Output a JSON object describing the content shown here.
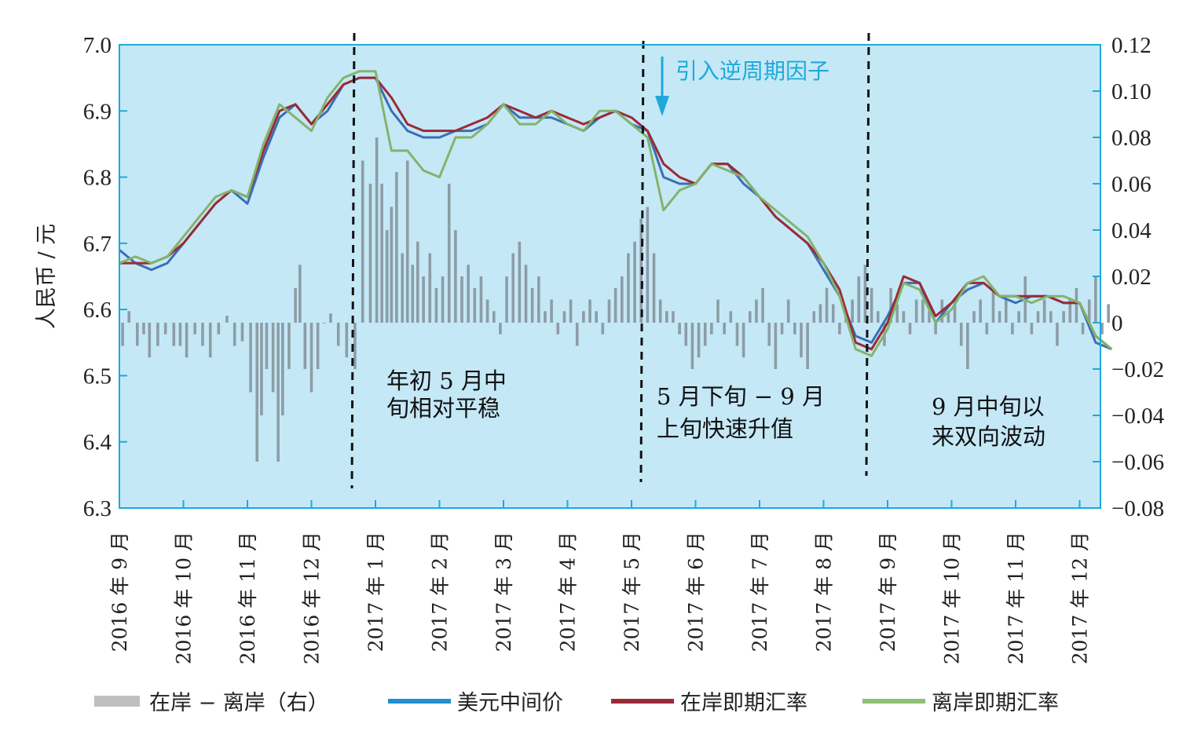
{
  "chart_data": {
    "type": "line",
    "ylabel": "人民币 / 元",
    "y_left": {
      "min": 6.3,
      "max": 7.0,
      "ticks": [
        "7.0",
        "6.9",
        "6.8",
        "6.7",
        "6.6",
        "6.5",
        "6.4",
        "6.3"
      ]
    },
    "y_right": {
      "min": -0.08,
      "max": 0.12,
      "ticks": [
        "0.12",
        "0.10",
        "0.08",
        "0.06",
        "0.04",
        "0.02",
        "0",
        "−0.02",
        "−0.04",
        "−0.06",
        "−0.08"
      ]
    },
    "x_ticks": [
      "2016 年 9 月",
      "2016 年 10 月",
      "2016 年 11 月",
      "2016 年 12 月",
      "2017 年 1 月",
      "2017 年 2 月",
      "2017 年 3 月",
      "2017 年 4 月",
      "2017 年 5 月",
      "2017 年 6 月",
      "2017 年 7 月",
      "2017 年 8 月",
      "2017 年 9 月",
      "2017 年 10 月",
      "2017 年 11 月",
      "2017 年 12 月"
    ],
    "grid": false,
    "colors": {
      "bg": "#c5e8f7",
      "axis": "#1fa9d8",
      "mid": "#3a6fb5",
      "onshore": "#9b2a37",
      "offshore": "#84b36a",
      "bars": "#8c9da6"
    },
    "annotations": [
      {
        "lines": [
          "年初 5 月中",
          "旬相对平稳"
        ]
      },
      {
        "lines": [
          "5 月下旬 − 9 月",
          "上旬快速升值"
        ]
      },
      {
        "lines": [
          "9 月中旬以",
          "来双向波动"
        ]
      }
    ],
    "arrow_note": "引入逆周期因子",
    "series": [
      {
        "name": "美元中间价",
        "axis": "left",
        "x": [
          0,
          0.25,
          0.5,
          0.75,
          1.0,
          1.25,
          1.5,
          1.75,
          2.0,
          2.25,
          2.5,
          2.75,
          3.0,
          3.25,
          3.5,
          3.75,
          4.0,
          4.25,
          4.5,
          4.75,
          5.0,
          5.25,
          5.5,
          5.75,
          6.0,
          6.25,
          6.5,
          6.75,
          7.0,
          7.25,
          7.5,
          7.75,
          8.0,
          8.25,
          8.5,
          8.75,
          9.0,
          9.25,
          9.5,
          9.75,
          10.0,
          10.25,
          10.5,
          10.75,
          11.0,
          11.25,
          11.5,
          11.75,
          12.0,
          12.25,
          12.5,
          12.75,
          13.0,
          13.25,
          13.5,
          13.75,
          14.0,
          14.25,
          14.5,
          14.75,
          15.0,
          15.25,
          15.5
        ],
        "values": [
          6.69,
          6.67,
          6.66,
          6.67,
          6.7,
          6.73,
          6.76,
          6.78,
          6.76,
          6.83,
          6.89,
          6.91,
          6.88,
          6.9,
          6.94,
          6.95,
          6.95,
          6.9,
          6.87,
          6.86,
          6.86,
          6.87,
          6.87,
          6.88,
          6.91,
          6.89,
          6.89,
          6.89,
          6.88,
          6.87,
          6.89,
          6.9,
          6.88,
          6.87,
          6.8,
          6.79,
          6.79,
          6.82,
          6.82,
          6.79,
          6.77,
          6.74,
          6.72,
          6.7,
          6.66,
          6.62,
          6.56,
          6.55,
          6.59,
          6.64,
          6.64,
          6.58,
          6.61,
          6.63,
          6.64,
          6.62,
          6.61,
          6.62,
          6.62,
          6.61,
          6.61,
          6.55,
          6.54
        ]
      },
      {
        "name": "在岸即期汇率",
        "axis": "left",
        "x": [
          0,
          0.25,
          0.5,
          0.75,
          1.0,
          1.25,
          1.5,
          1.75,
          2.0,
          2.25,
          2.5,
          2.75,
          3.0,
          3.25,
          3.5,
          3.75,
          4.0,
          4.25,
          4.5,
          4.75,
          5.0,
          5.25,
          5.5,
          5.75,
          6.0,
          6.25,
          6.5,
          6.75,
          7.0,
          7.25,
          7.5,
          7.75,
          8.0,
          8.25,
          8.5,
          8.75,
          9.0,
          9.25,
          9.5,
          9.75,
          10.0,
          10.25,
          10.5,
          10.75,
          11.0,
          11.25,
          11.5,
          11.75,
          12.0,
          12.25,
          12.5,
          12.75,
          13.0,
          13.25,
          13.5,
          13.75,
          14.0,
          14.25,
          14.5,
          14.75,
          15.0,
          15.25,
          15.5
        ],
        "values": [
          6.67,
          6.67,
          6.67,
          6.68,
          6.7,
          6.73,
          6.76,
          6.78,
          6.77,
          6.84,
          6.9,
          6.91,
          6.88,
          6.91,
          6.94,
          6.95,
          6.95,
          6.92,
          6.88,
          6.87,
          6.87,
          6.87,
          6.88,
          6.89,
          6.91,
          6.9,
          6.89,
          6.9,
          6.89,
          6.88,
          6.89,
          6.9,
          6.89,
          6.87,
          6.82,
          6.8,
          6.79,
          6.82,
          6.82,
          6.8,
          6.77,
          6.74,
          6.72,
          6.7,
          6.67,
          6.63,
          6.55,
          6.54,
          6.58,
          6.65,
          6.64,
          6.59,
          6.61,
          6.64,
          6.64,
          6.62,
          6.62,
          6.62,
          6.62,
          6.61,
          6.61,
          6.56,
          6.54
        ]
      },
      {
        "name": "离岸即期汇率",
        "axis": "left",
        "x": [
          0,
          0.25,
          0.5,
          0.75,
          1.0,
          1.25,
          1.5,
          1.75,
          2.0,
          2.25,
          2.5,
          2.75,
          3.0,
          3.25,
          3.5,
          3.75,
          4.0,
          4.25,
          4.5,
          4.75,
          5.0,
          5.25,
          5.5,
          5.75,
          6.0,
          6.25,
          6.5,
          6.75,
          7.0,
          7.25,
          7.5,
          7.75,
          8.0,
          8.25,
          8.5,
          8.75,
          9.0,
          9.25,
          9.5,
          9.75,
          10.0,
          10.25,
          10.5,
          10.75,
          11.0,
          11.25,
          11.5,
          11.75,
          12.0,
          12.25,
          12.5,
          12.75,
          13.0,
          13.25,
          13.5,
          13.75,
          14.0,
          14.25,
          14.5,
          14.75,
          15.0,
          15.25,
          15.5
        ],
        "values": [
          6.67,
          6.68,
          6.67,
          6.68,
          6.71,
          6.74,
          6.77,
          6.78,
          6.77,
          6.85,
          6.91,
          6.89,
          6.87,
          6.92,
          6.95,
          6.96,
          6.96,
          6.84,
          6.84,
          6.81,
          6.8,
          6.86,
          6.86,
          6.88,
          6.91,
          6.88,
          6.88,
          6.9,
          6.88,
          6.87,
          6.9,
          6.9,
          6.88,
          6.86,
          6.75,
          6.78,
          6.79,
          6.82,
          6.81,
          6.8,
          6.77,
          6.75,
          6.73,
          6.71,
          6.67,
          6.62,
          6.54,
          6.53,
          6.57,
          6.64,
          6.63,
          6.58,
          6.6,
          6.64,
          6.65,
          6.62,
          6.62,
          6.61,
          6.62,
          6.62,
          6.61,
          6.56,
          6.54
        ]
      },
      {
        "name": "在岸 − 离岸（右）",
        "axis": "right",
        "type": "bar",
        "x": [
          0.05,
          0.15,
          0.28,
          0.38,
          0.47,
          0.6,
          0.72,
          0.85,
          0.95,
          1.05,
          1.18,
          1.3,
          1.42,
          1.55,
          1.68,
          1.8,
          1.92,
          2.05,
          2.15,
          2.22,
          2.3,
          2.4,
          2.48,
          2.55,
          2.65,
          2.75,
          2.82,
          2.9,
          3.0,
          3.1,
          3.2,
          3.3,
          3.42,
          3.55,
          3.68,
          3.8,
          3.92,
          4.02,
          4.1,
          4.18,
          4.25,
          4.33,
          4.42,
          4.5,
          4.58,
          4.66,
          4.75,
          4.85,
          4.95,
          5.05,
          5.15,
          5.25,
          5.35,
          5.45,
          5.55,
          5.65,
          5.75,
          5.85,
          5.95,
          6.05,
          6.15,
          6.25,
          6.35,
          6.45,
          6.55,
          6.65,
          6.75,
          6.85,
          6.95,
          7.05,
          7.15,
          7.25,
          7.35,
          7.45,
          7.55,
          7.65,
          7.75,
          7.85,
          7.95,
          8.05,
          8.15,
          8.25,
          8.35,
          8.45,
          8.55,
          8.65,
          8.75,
          8.85,
          8.95,
          9.05,
          9.15,
          9.25,
          9.35,
          9.45,
          9.55,
          9.65,
          9.75,
          9.85,
          9.95,
          10.05,
          10.15,
          10.25,
          10.35,
          10.45,
          10.55,
          10.65,
          10.75,
          10.85,
          10.95,
          11.05,
          11.15,
          11.25,
          11.35,
          11.45,
          11.55,
          11.65,
          11.75,
          11.85,
          11.95,
          12.05,
          12.15,
          12.25,
          12.35,
          12.45,
          12.55,
          12.65,
          12.75,
          12.85,
          12.95,
          13.05,
          13.15,
          13.25,
          13.35,
          13.45,
          13.55,
          13.65,
          13.75,
          13.85,
          13.95,
          14.05,
          14.15,
          14.25,
          14.35,
          14.45,
          14.55,
          14.65,
          14.75,
          14.85,
          14.95,
          15.05,
          15.15,
          15.25,
          15.35,
          15.45
        ],
        "values": [
          -0.01,
          0.005,
          -0.01,
          -0.005,
          -0.015,
          -0.01,
          -0.005,
          -0.01,
          -0.01,
          -0.015,
          -0.005,
          -0.01,
          -0.015,
          -0.005,
          0.003,
          -0.01,
          -0.008,
          -0.03,
          -0.06,
          -0.04,
          -0.02,
          -0.03,
          -0.06,
          -0.04,
          -0.02,
          0.015,
          0.025,
          -0.02,
          -0.03,
          -0.02,
          0.0,
          0.004,
          -0.01,
          -0.015,
          -0.02,
          0.07,
          0.06,
          0.08,
          0.06,
          0.04,
          0.05,
          0.065,
          0.03,
          0.07,
          0.025,
          0.035,
          0.02,
          0.03,
          0.015,
          0.02,
          0.06,
          0.04,
          0.02,
          0.025,
          0.015,
          0.02,
          0.01,
          0.005,
          -0.005,
          0.02,
          0.03,
          0.035,
          0.025,
          0.015,
          0.02,
          0.005,
          0.01,
          -0.005,
          0.005,
          0.01,
          -0.01,
          0.005,
          0.01,
          0.005,
          -0.005,
          0.01,
          0.015,
          0.02,
          0.03,
          0.035,
          0.045,
          0.05,
          0.03,
          0.01,
          0.005,
          0.005,
          -0.005,
          -0.01,
          -0.02,
          -0.015,
          -0.01,
          -0.005,
          0.01,
          -0.005,
          0.005,
          -0.01,
          -0.015,
          0.005,
          0.01,
          0.015,
          -0.01,
          -0.02,
          -0.005,
          0.01,
          -0.005,
          -0.015,
          -0.02,
          0.005,
          0.008,
          0.015,
          0.008,
          -0.005,
          0.005,
          0.01,
          0.02,
          0.025,
          0.015,
          0.005,
          -0.01,
          0.015,
          0.008,
          0.005,
          -0.005,
          0.01,
          0.01,
          0.005,
          -0.005,
          0.01,
          0.005,
          0.01,
          -0.01,
          -0.02,
          0.005,
          0.01,
          -0.005,
          0.015,
          0.005,
          0.01,
          -0.005,
          0.005,
          0.02,
          -0.005,
          0.005,
          0.01,
          0.005,
          -0.01,
          0.005,
          0.01,
          0.015,
          -0.005,
          0.01,
          0.02,
          -0.005,
          0.008
        ]
      }
    ]
  },
  "legend": [
    {
      "key": "diff",
      "label": "在岸 − 离岸（右）",
      "color": "#bfbfbf"
    },
    {
      "key": "mid",
      "label": "美元中间价",
      "color": "#1f8fd0"
    },
    {
      "key": "onshore",
      "label": "在岸即期汇率",
      "color": "#9b2a37"
    },
    {
      "key": "offshore",
      "label": "离岸即期汇率",
      "color": "#8fbf74"
    }
  ]
}
